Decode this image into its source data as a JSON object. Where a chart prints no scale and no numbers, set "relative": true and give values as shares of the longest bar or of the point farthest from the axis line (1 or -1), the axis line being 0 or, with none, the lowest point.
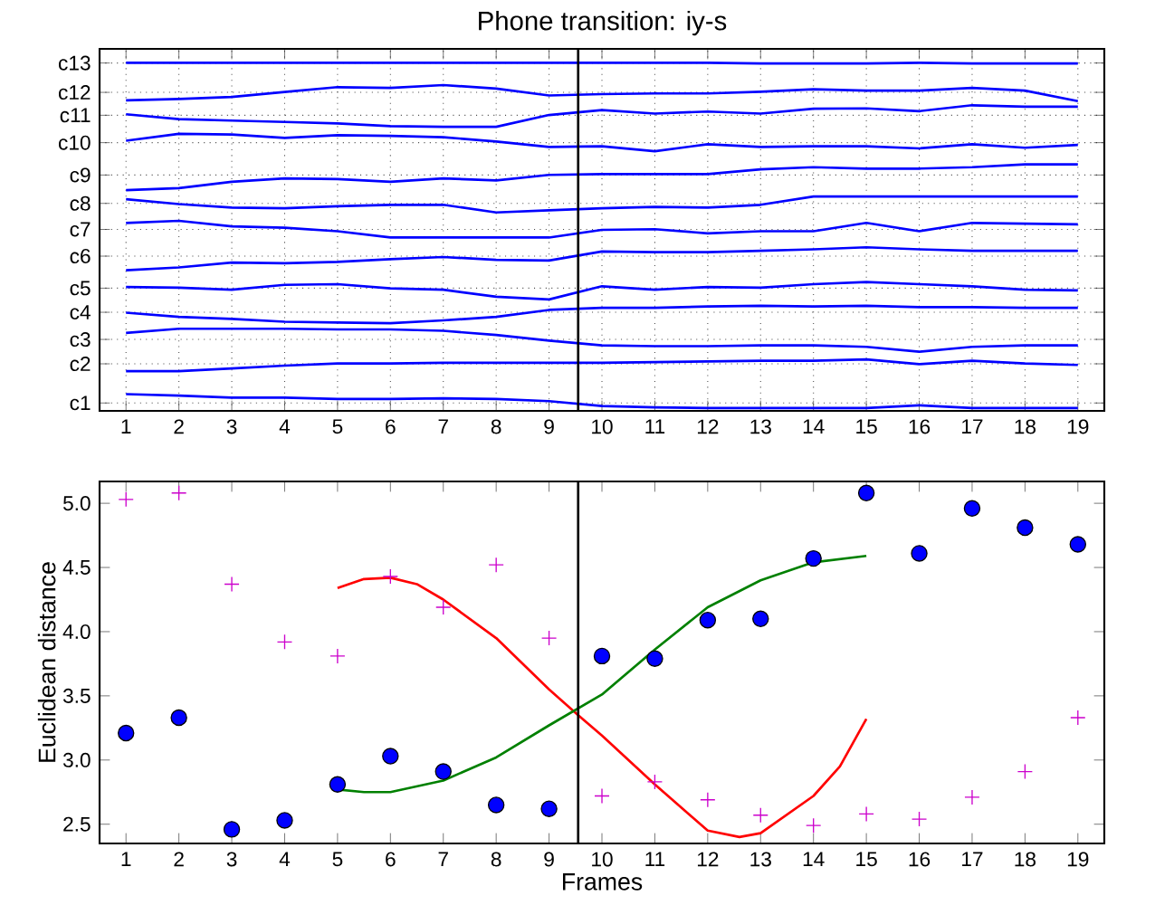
{
  "chart_data": [
    {
      "type": "line",
      "title": "Phone transition: iy-s",
      "x": [
        1,
        2,
        3,
        4,
        5,
        6,
        7,
        8,
        9,
        10,
        11,
        12,
        13,
        14,
        15,
        16,
        17,
        18,
        19
      ],
      "xlim": [
        0.5,
        19.5
      ],
      "xticks": [
        1,
        2,
        3,
        4,
        5,
        6,
        7,
        8,
        9,
        10,
        11,
        12,
        13,
        14,
        15,
        16,
        17,
        18,
        19
      ],
      "relative": true,
      "grid": true,
      "marker": "none",
      "ref_lines": [
        {
          "axis": "x",
          "value": 9.55,
          "color": "#000000"
        }
      ],
      "series": [
        {
          "name": "c1",
          "color": "#0000ff",
          "values": [
            0.048,
            0.044,
            0.038,
            0.038,
            0.034,
            0.034,
            0.036,
            0.034,
            0.028,
            0.014,
            0.01,
            0.008,
            0.008,
            0.008,
            0.008,
            0.016,
            0.008,
            0.008,
            0.008
          ]
        },
        {
          "name": "c2",
          "color": "#0000ff",
          "values": [
            0.114,
            0.114,
            0.122,
            0.13,
            0.136,
            0.136,
            0.138,
            0.138,
            0.138,
            0.138,
            0.14,
            0.142,
            0.144,
            0.144,
            0.148,
            0.134,
            0.144,
            0.136,
            0.132
          ]
        },
        {
          "name": "c3",
          "color": "#0000ff",
          "values": [
            0.224,
            0.236,
            0.236,
            0.236,
            0.234,
            0.234,
            0.23,
            0.218,
            0.202,
            0.188,
            0.186,
            0.186,
            0.188,
            0.188,
            0.184,
            0.17,
            0.184,
            0.188,
            0.188
          ]
        },
        {
          "name": "c4",
          "color": "#0000ff",
          "values": [
            0.282,
            0.27,
            0.264,
            0.256,
            0.254,
            0.252,
            0.26,
            0.27,
            0.29,
            0.296,
            0.296,
            0.3,
            0.302,
            0.3,
            0.302,
            0.298,
            0.298,
            0.296,
            0.296
          ]
        },
        {
          "name": "c5",
          "color": "#0000ff",
          "values": [
            0.356,
            0.354,
            0.348,
            0.362,
            0.364,
            0.352,
            0.348,
            0.328,
            0.32,
            0.358,
            0.348,
            0.356,
            0.354,
            0.364,
            0.37,
            0.364,
            0.358,
            0.348,
            0.346
          ]
        },
        {
          "name": "c6",
          "color": "#0000ff",
          "values": [
            0.404,
            0.412,
            0.426,
            0.424,
            0.428,
            0.436,
            0.442,
            0.434,
            0.432,
            0.458,
            0.456,
            0.456,
            0.46,
            0.464,
            0.47,
            0.464,
            0.46,
            0.46,
            0.46
          ]
        },
        {
          "name": "c7",
          "color": "#0000ff",
          "values": [
            0.54,
            0.546,
            0.53,
            0.526,
            0.516,
            0.498,
            0.498,
            0.498,
            0.498,
            0.52,
            0.522,
            0.51,
            0.516,
            0.516,
            0.54,
            0.516,
            0.54,
            0.538,
            0.536
          ]
        },
        {
          "name": "c8",
          "color": "#0000ff",
          "values": [
            0.608,
            0.594,
            0.584,
            0.582,
            0.588,
            0.592,
            0.592,
            0.57,
            0.576,
            0.582,
            0.586,
            0.584,
            0.592,
            0.616,
            0.616,
            0.616,
            0.616,
            0.616,
            0.616
          ]
        },
        {
          "name": "c9",
          "color": "#0000ff",
          "values": [
            0.634,
            0.64,
            0.658,
            0.668,
            0.666,
            0.658,
            0.668,
            0.662,
            0.678,
            0.68,
            0.68,
            0.68,
            0.694,
            0.7,
            0.696,
            0.696,
            0.7,
            0.708,
            0.708
          ]
        },
        {
          "name": "c10",
          "color": "#0000ff",
          "values": [
            0.776,
            0.796,
            0.794,
            0.784,
            0.792,
            0.79,
            0.786,
            0.774,
            0.758,
            0.76,
            0.746,
            0.766,
            0.758,
            0.76,
            0.76,
            0.754,
            0.766,
            0.756,
            0.764
          ]
        },
        {
          "name": "c11",
          "color": "#0000ff",
          "values": [
            0.852,
            0.838,
            0.834,
            0.83,
            0.826,
            0.818,
            0.816,
            0.816,
            0.85,
            0.864,
            0.854,
            0.86,
            0.854,
            0.868,
            0.869,
            0.861,
            0.878,
            0.874,
            0.874
          ]
        },
        {
          "name": "c12",
          "color": "#0000ff",
          "values": [
            0.892,
            0.896,
            0.902,
            0.916,
            0.93,
            0.928,
            0.936,
            0.926,
            0.906,
            0.91,
            0.912,
            0.912,
            0.917,
            0.924,
            0.92,
            0.92,
            0.928,
            0.92,
            0.89
          ]
        },
        {
          "name": "c13",
          "color": "#0000ff",
          "values": [
            1,
            1,
            1,
            1,
            1,
            1,
            1,
            1,
            1,
            1,
            1,
            1,
            0.998,
            0.998,
            0.998,
            1,
            0.998,
            0.998,
            0.998
          ]
        }
      ]
    },
    {
      "type": "scatter",
      "xlabel": "Frames",
      "ylabel": "Euclidean distance",
      "x": [
        1,
        2,
        3,
        4,
        5,
        6,
        7,
        8,
        9,
        10,
        11,
        12,
        13,
        14,
        15,
        16,
        17,
        18,
        19
      ],
      "xlim": [
        0.5,
        19.5
      ],
      "xticks": [
        1,
        2,
        3,
        4,
        5,
        6,
        7,
        8,
        9,
        10,
        11,
        12,
        13,
        14,
        15,
        16,
        17,
        18,
        19
      ],
      "ylim": [
        2.35,
        5.17
      ],
      "yticks": [
        {
          "value": 2.5,
          "label": "2.5"
        },
        {
          "value": 3.0,
          "label": "3.0"
        },
        {
          "value": 3.5,
          "label": "3.5"
        },
        {
          "value": 4.0,
          "label": "4.0"
        },
        {
          "value": 4.5,
          "label": "4.5"
        },
        {
          "value": 5.0,
          "label": "5.0"
        }
      ],
      "grid": false,
      "ref_lines": [
        {
          "axis": "x",
          "value": 9.55,
          "color": "#000000"
        }
      ],
      "series": [
        {
          "type": "line",
          "color": "#ff0000",
          "marker": "none",
          "x": [
            5,
            5.5,
            6,
            6.5,
            7,
            8,
            9,
            9.55,
            10,
            11,
            12,
            12.6,
            13,
            14,
            14.5,
            15
          ],
          "values": [
            4.34,
            4.41,
            4.42,
            4.37,
            4.25,
            3.95,
            3.55,
            3.35,
            3.19,
            2.81,
            2.45,
            2.4,
            2.43,
            2.72,
            2.95,
            3.32
          ]
        },
        {
          "type": "line",
          "color": "#008000",
          "marker": "none",
          "x": [
            5,
            5.5,
            6,
            7,
            8,
            9,
            10,
            11,
            12,
            13,
            14,
            15
          ],
          "values": [
            2.77,
            2.75,
            2.75,
            2.84,
            3.02,
            3.27,
            3.51,
            3.86,
            4.19,
            4.4,
            4.54,
            4.59
          ]
        },
        {
          "type": "scatter",
          "color": "#0000ff",
          "marker": "circle",
          "values": [
            3.21,
            3.33,
            2.46,
            2.53,
            2.81,
            3.03,
            2.91,
            2.65,
            2.62,
            3.81,
            3.79,
            4.09,
            4.1,
            4.57,
            5.08,
            4.61,
            4.96,
            4.81,
            4.68
          ]
        },
        {
          "type": "scatter",
          "color": "#cc00cc",
          "marker": "cross",
          "values": [
            5.03,
            5.08,
            4.37,
            3.92,
            3.81,
            4.43,
            4.19,
            4.52,
            3.95,
            2.72,
            2.83,
            2.69,
            2.57,
            2.49,
            2.58,
            2.54,
            2.71,
            2.91,
            3.33
          ]
        }
      ]
    }
  ]
}
